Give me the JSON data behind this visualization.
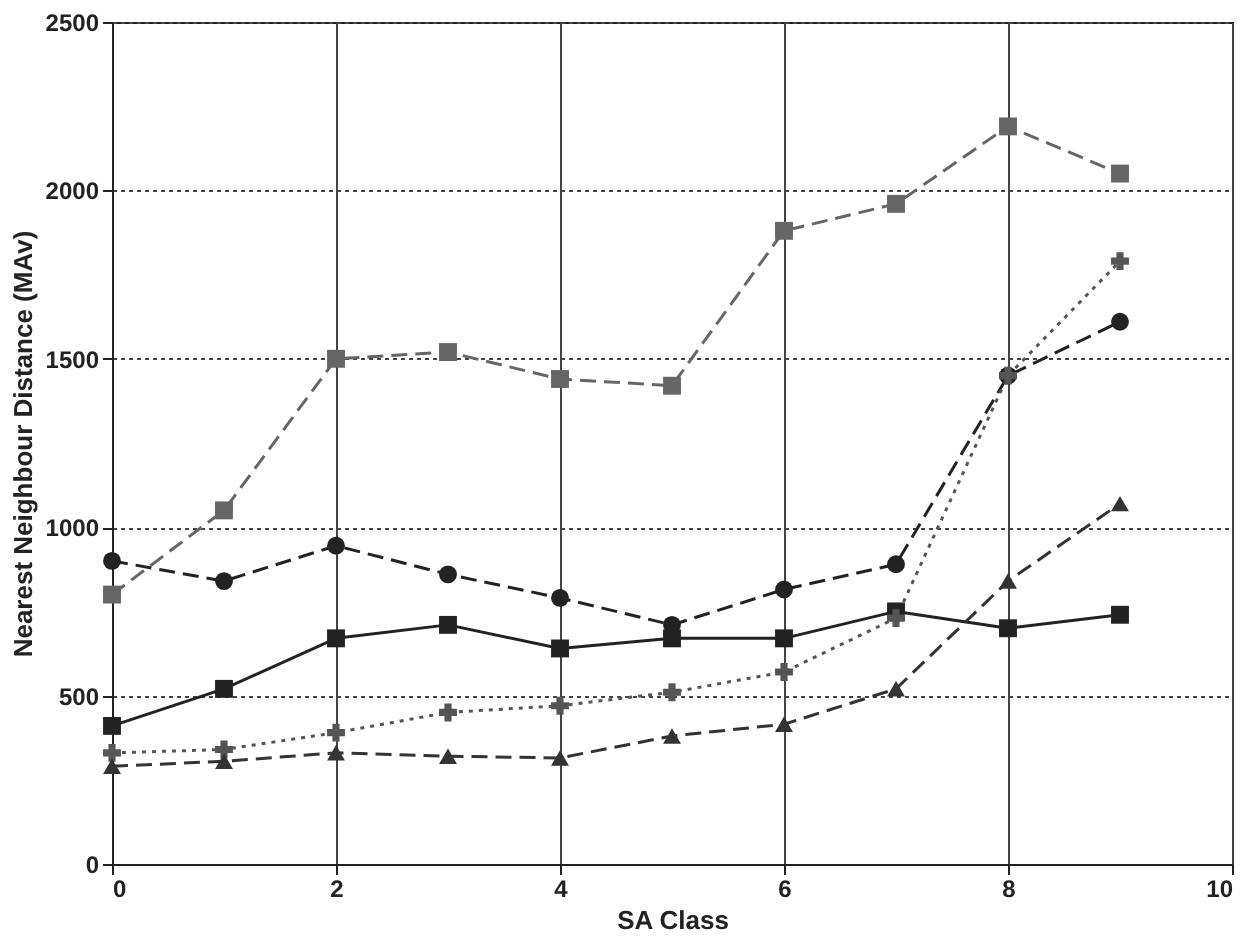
{
  "chart_data": {
    "type": "line",
    "xlabel": "SA Class",
    "ylabel": "Nearest Neighbour Distance (MAv)",
    "x": [
      0,
      1,
      2,
      3,
      4,
      5,
      6,
      7,
      8,
      9
    ],
    "series": [
      {
        "color": "#666666",
        "marker": "square",
        "line_style": "dashed",
        "values": [
          800,
          1050,
          1500,
          1520,
          1440,
          1420,
          1880,
          1960,
          2190,
          2050
        ]
      },
      {
        "color": "#222222",
        "marker": "circle",
        "line_style": "dashed",
        "values": [
          900,
          840,
          945,
          860,
          790,
          710,
          815,
          890,
          1450,
          1610
        ]
      },
      {
        "color": "#222222",
        "marker": "square",
        "line_style": "solid",
        "values": [
          410,
          520,
          670,
          710,
          640,
          670,
          670,
          750,
          700,
          740
        ]
      },
      {
        "color": "#555555",
        "marker": "cross",
        "line_style": "dotted",
        "values": [
          330,
          340,
          390,
          450,
          470,
          510,
          570,
          730,
          1450,
          1790
        ]
      },
      {
        "color": "#333333",
        "marker": "triangle",
        "line_style": "dashed",
        "values": [
          290,
          305,
          330,
          320,
          315,
          380,
          415,
          520,
          840,
          1070
        ]
      }
    ],
    "xlim": [
      0,
      10
    ],
    "xticks": [
      0,
      2,
      4,
      6,
      8,
      10
    ],
    "ylim": [
      0,
      2500
    ],
    "yticks": [
      0,
      500,
      1000,
      1500,
      2000,
      2500
    ],
    "grid": true
  }
}
